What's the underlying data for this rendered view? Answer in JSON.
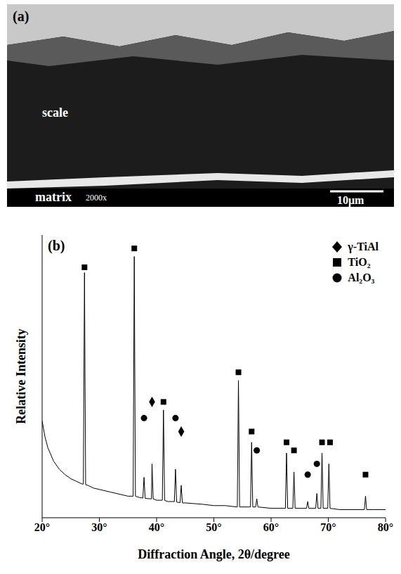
{
  "figure": {
    "a": {
      "label": "(a)",
      "annotations": [
        "scale",
        "matrix",
        "2000x"
      ],
      "scale_bar": "10μm"
    }
  },
  "chart_data": {
    "type": "line",
    "label": "(b)",
    "x_label": "Diffraction Angle, 2θ/degree",
    "y_label": "Relative Intensity",
    "color": "#000000",
    "x": [
      20,
      20.5,
      21,
      22,
      23,
      24,
      25,
      26,
      27,
      27.2,
      27.4,
      27.6,
      28,
      29,
      30,
      32,
      34,
      35,
      35.9,
      36.1,
      36.3,
      37,
      37.6,
      37.8,
      38,
      39,
      39.1,
      39.2,
      39.4,
      40,
      41,
      41.2,
      41.4,
      42,
      43.1,
      43.3,
      43.5,
      44.1,
      44.3,
      44.5,
      45,
      48,
      50,
      52,
      54,
      54.1,
      54.3,
      54.5,
      56,
      56.4,
      56.6,
      56.8,
      57.3,
      57.5,
      57.7,
      60,
      62.5,
      62.7,
      62.9,
      63.8,
      64,
      64.2,
      66.2,
      66.4,
      66.6,
      67.8,
      68,
      68.2,
      68.7,
      68.9,
      69.1,
      69.9,
      70.1,
      70.3,
      72,
      74,
      76.3,
      76.5,
      76.7,
      78,
      80
    ],
    "values": [
      36,
      30,
      26,
      21,
      18,
      16,
      14.5,
      13.5,
      12.5,
      12.5,
      91,
      12.3,
      12,
      11,
      10.5,
      9.5,
      8.5,
      8,
      8,
      97,
      8,
      7.5,
      7.3,
      15,
      7.2,
      7,
      7,
      20,
      7,
      6.5,
      6.5,
      40,
      6.4,
      6,
      6,
      18,
      5.8,
      5.6,
      12,
      5.5,
      5.5,
      5,
      4.5,
      4.5,
      4,
      4,
      51,
      4,
      4,
      4,
      28,
      4,
      4,
      7,
      4,
      3.5,
      3.5,
      24,
      3.5,
      3.5,
      17,
      3.5,
      3.5,
      6,
      3.5,
      3.5,
      9,
      3.5,
      3.5,
      24,
      3.5,
      3.5,
      20,
      3.5,
      3,
      3,
      3,
      8,
      3,
      3,
      3
    ],
    "markers": [
      {
        "name": "γ-TiAl",
        "marker": "diamond",
        "color": "#000000",
        "x": [
          39.2,
          44.3
        ],
        "y": [
          43,
          32
        ]
      },
      {
        "name": "TiO₂",
        "marker": "square",
        "color": "#000000",
        "x": [
          27.4,
          36.1,
          41.2,
          54.3,
          56.6,
          62.7,
          64,
          68.9,
          70.3,
          76.5
        ],
        "y": [
          93,
          100,
          43,
          54,
          32,
          28,
          25,
          28,
          28,
          16
        ]
      },
      {
        "name": "Al₂O₃",
        "marker": "circle",
        "color": "#000000",
        "x": [
          37.8,
          43.3,
          57.5,
          66.4,
          68
        ],
        "y": [
          37,
          37,
          25,
          16,
          20
        ]
      }
    ],
    "xlim": [
      20,
      80
    ],
    "xticks": [
      {
        "value": 20,
        "label": "20°"
      },
      {
        "value": 30,
        "label": "30°"
      },
      {
        "value": 40,
        "label": "40°"
      },
      {
        "value": 50,
        "label": "50°"
      },
      {
        "value": 60,
        "label": "60°"
      },
      {
        "value": 70,
        "label": "70°"
      },
      {
        "value": 80,
        "label": "80°"
      }
    ],
    "ylim": [
      0,
      105
    ],
    "yticks": [],
    "tick_labels": "x",
    "legend": "upper right",
    "grid": false
  }
}
